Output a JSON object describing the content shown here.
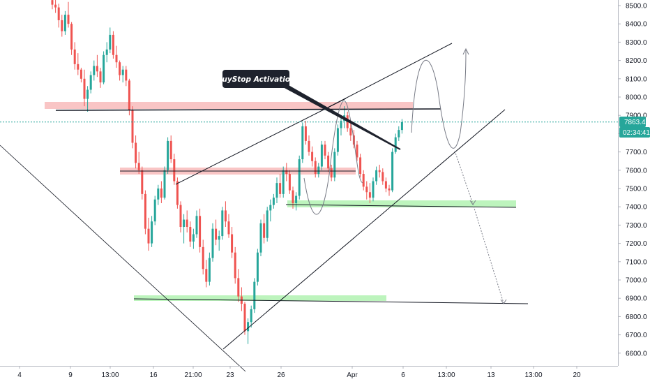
{
  "chart_data": {
    "type": "candlestick",
    "title": "",
    "xlabel": "",
    "ylabel": "",
    "ylim": [
      6520,
      8560
    ],
    "y_ticks": [
      "8500.0",
      "8400.0",
      "8300.0",
      "8200.0",
      "8100.0",
      "8000.0",
      "7900.0",
      "7800.0",
      "7700.0",
      "7600.0",
      "7500.0",
      "7400.0",
      "7300.0",
      "7200.0",
      "7100.0",
      "7000.0",
      "6900.0",
      "6800.0",
      "6700.0",
      "6600.0"
    ],
    "y_tick_values": [
      8500,
      8400,
      8300,
      8200,
      8100,
      8000,
      7900,
      7800,
      7700,
      7600,
      7500,
      7400,
      7300,
      7200,
      7100,
      7000,
      6900,
      6800,
      6700,
      6600
    ],
    "x_ticks": [
      "4",
      "9",
      "13:00",
      "16",
      "21:00",
      "23",
      "26",
      "Apr",
      "6",
      "13:00",
      "13",
      "13:00",
      "20"
    ],
    "x_tick_positions": [
      28,
      101,
      158,
      220,
      277,
      330,
      403,
      505,
      578,
      640,
      704,
      765,
      827
    ],
    "grid": false,
    "current_price": {
      "label": "7863.4",
      "value": 7863.4,
      "color": "#26a69a"
    },
    "countdown": {
      "label": "02:34:41",
      "color": "#26a69a"
    },
    "annotation": {
      "text": "BuyStop Activation",
      "bg": "#1e222d"
    },
    "colors": {
      "up": "#26a69a",
      "down": "#ef5350",
      "resistance_zone": "#f7b2b2",
      "support_zone": "#a7f0a7",
      "line": "#131722",
      "projection": "#787b86"
    },
    "candles": [
      [
        8530,
        8560,
        8480,
        8505
      ],
      [
        8505,
        8560,
        8460,
        8490
      ],
      [
        8490,
        8510,
        8380,
        8420
      ],
      [
        8420,
        8450,
        8330,
        8360
      ],
      [
        8360,
        8470,
        8340,
        8450
      ],
      [
        8450,
        8520,
        8380,
        8400
      ],
      [
        8400,
        8410,
        8230,
        8260
      ],
      [
        8260,
        8300,
        8150,
        8180
      ],
      [
        8180,
        8240,
        8120,
        8150
      ],
      [
        8150,
        8160,
        8080,
        8100
      ],
      [
        8100,
        8150,
        7950,
        7990
      ],
      [
        7990,
        8060,
        7920,
        8040
      ],
      [
        8040,
        8140,
        8020,
        8120
      ],
      [
        8120,
        8200,
        8090,
        8170
      ],
      [
        8170,
        8230,
        8110,
        8140
      ],
      [
        8140,
        8160,
        8050,
        8080
      ],
      [
        8080,
        8250,
        8070,
        8230
      ],
      [
        8230,
        8300,
        8190,
        8260
      ],
      [
        8260,
        8380,
        8240,
        8340
      ],
      [
        8340,
        8360,
        8210,
        8230
      ],
      [
        8230,
        8280,
        8160,
        8190
      ],
      [
        8190,
        8200,
        8090,
        8120
      ],
      [
        8120,
        8170,
        8080,
        8150
      ],
      [
        8150,
        8170,
        8060,
        8090
      ],
      [
        8090,
        8100,
        7900,
        7930
      ],
      [
        7930,
        7950,
        7720,
        7750
      ],
      [
        7750,
        7790,
        7610,
        7640
      ],
      [
        7640,
        7700,
        7580,
        7600
      ],
      [
        7600,
        7620,
        7440,
        7470
      ],
      [
        7470,
        7490,
        7250,
        7280
      ],
      [
        7280,
        7340,
        7160,
        7200
      ],
      [
        7200,
        7350,
        7180,
        7320
      ],
      [
        7320,
        7460,
        7300,
        7440
      ],
      [
        7440,
        7520,
        7410,
        7500
      ],
      [
        7500,
        7540,
        7420,
        7450
      ],
      [
        7450,
        7620,
        7440,
        7600
      ],
      [
        7600,
        7780,
        7580,
        7760
      ],
      [
        7760,
        7790,
        7640,
        7660
      ],
      [
        7660,
        7690,
        7520,
        7540
      ],
      [
        7540,
        7560,
        7390,
        7410
      ],
      [
        7410,
        7430,
        7260,
        7290
      ],
      [
        7290,
        7360,
        7200,
        7330
      ],
      [
        7330,
        7380,
        7260,
        7290
      ],
      [
        7290,
        7320,
        7180,
        7210
      ],
      [
        7210,
        7280,
        7170,
        7250
      ],
      [
        7250,
        7380,
        7230,
        7350
      ],
      [
        7350,
        7390,
        7150,
        7180
      ],
      [
        7180,
        7220,
        7030,
        7060
      ],
      [
        7060,
        7110,
        6960,
        6990
      ],
      [
        6990,
        7150,
        6970,
        7120
      ],
      [
        7120,
        7310,
        7100,
        7280
      ],
      [
        7280,
        7330,
        7190,
        7220
      ],
      [
        7220,
        7270,
        7160,
        7240
      ],
      [
        7240,
        7400,
        7220,
        7380
      ],
      [
        7380,
        7430,
        7290,
        7320
      ],
      [
        7320,
        7360,
        7230,
        7250
      ],
      [
        7250,
        7290,
        7120,
        7150
      ],
      [
        7150,
        7180,
        6980,
        7010
      ],
      [
        7010,
        7060,
        6880,
        6910
      ],
      [
        6910,
        6960,
        6830,
        6870
      ],
      [
        6870,
        6880,
        6700,
        6720
      ],
      [
        6720,
        6790,
        6650,
        6770
      ],
      [
        6770,
        6860,
        6740,
        6840
      ],
      [
        6840,
        7010,
        6820,
        6990
      ],
      [
        6990,
        7170,
        6970,
        7150
      ],
      [
        7150,
        7330,
        7130,
        7310
      ],
      [
        7310,
        7360,
        7200,
        7230
      ],
      [
        7230,
        7400,
        7210,
        7380
      ],
      [
        7380,
        7440,
        7320,
        7410
      ],
      [
        7410,
        7470,
        7390,
        7450
      ],
      [
        7450,
        7560,
        7420,
        7530
      ],
      [
        7530,
        7580,
        7450,
        7470
      ],
      [
        7470,
        7620,
        7450,
        7600
      ],
      [
        7600,
        7640,
        7540,
        7580
      ],
      [
        7580,
        7600,
        7470,
        7490
      ],
      [
        7490,
        7510,
        7390,
        7420
      ],
      [
        7420,
        7480,
        7380,
        7460
      ],
      [
        7460,
        7680,
        7440,
        7660
      ],
      [
        7660,
        7860,
        7640,
        7840
      ],
      [
        7840,
        7870,
        7740,
        7760
      ],
      [
        7760,
        7790,
        7680,
        7700
      ],
      [
        7700,
        7730,
        7620,
        7650
      ],
      [
        7650,
        7670,
        7560,
        7580
      ],
      [
        7580,
        7640,
        7560,
        7620
      ],
      [
        7620,
        7760,
        7600,
        7740
      ],
      [
        7740,
        7760,
        7660,
        7680
      ],
      [
        7680,
        7700,
        7590,
        7610
      ],
      [
        7610,
        7630,
        7540,
        7560
      ],
      [
        7560,
        7720,
        7540,
        7700
      ],
      [
        7700,
        7850,
        7680,
        7830
      ],
      [
        7830,
        7900,
        7790,
        7870
      ],
      [
        7870,
        7950,
        7830,
        7900
      ],
      [
        7900,
        7920,
        7810,
        7830
      ],
      [
        7830,
        7860,
        7760,
        7790
      ],
      [
        7790,
        7820,
        7720,
        7740
      ],
      [
        7740,
        7760,
        7650,
        7670
      ],
      [
        7670,
        7690,
        7560,
        7580
      ],
      [
        7580,
        7600,
        7490,
        7510
      ],
      [
        7510,
        7540,
        7440,
        7480
      ],
      [
        7480,
        7530,
        7420,
        7450
      ],
      [
        7450,
        7560,
        7430,
        7540
      ],
      [
        7540,
        7620,
        7520,
        7600
      ],
      [
        7600,
        7630,
        7560,
        7590
      ],
      [
        7590,
        7610,
        7520,
        7540
      ],
      [
        7540,
        7560,
        7480,
        7500
      ],
      [
        7500,
        7520,
        7460,
        7490
      ],
      [
        7490,
        7720,
        7480,
        7700
      ],
      [
        7700,
        7800,
        7690,
        7780
      ],
      [
        7780,
        7840,
        7760,
        7820
      ],
      [
        7820,
        7880,
        7800,
        7863
      ]
    ],
    "lines": [
      {
        "kind": "trend",
        "pts": [
          [
            0,
            560
          ],
          [
            350,
            1145
          ]
        ]
      },
      {
        "kind": "trend",
        "pts": [
          [
            80,
            158
          ],
          [
            632,
            156
          ]
        ]
      },
      {
        "kind": "trend",
        "pts": [
          [
            252,
            264
          ],
          [
            495,
            141
          ]
        ]
      },
      {
        "kind": "trend",
        "pts": [
          [
            172,
            245
          ],
          [
            510,
            245
          ]
        ]
      },
      {
        "kind": "trend",
        "pts": [
          [
            470,
            154
          ],
          [
            648,
            62
          ]
        ]
      },
      {
        "kind": "trend",
        "pts": [
          [
            320,
            500
          ],
          [
            724,
            157
          ]
        ]
      },
      {
        "kind": "trend",
        "pts": [
          [
            410,
            293
          ],
          [
            740,
            297
          ]
        ]
      },
      {
        "kind": "trend",
        "pts": [
          [
            192,
            428
          ],
          [
            757,
            435
          ]
        ]
      }
    ]
  }
}
